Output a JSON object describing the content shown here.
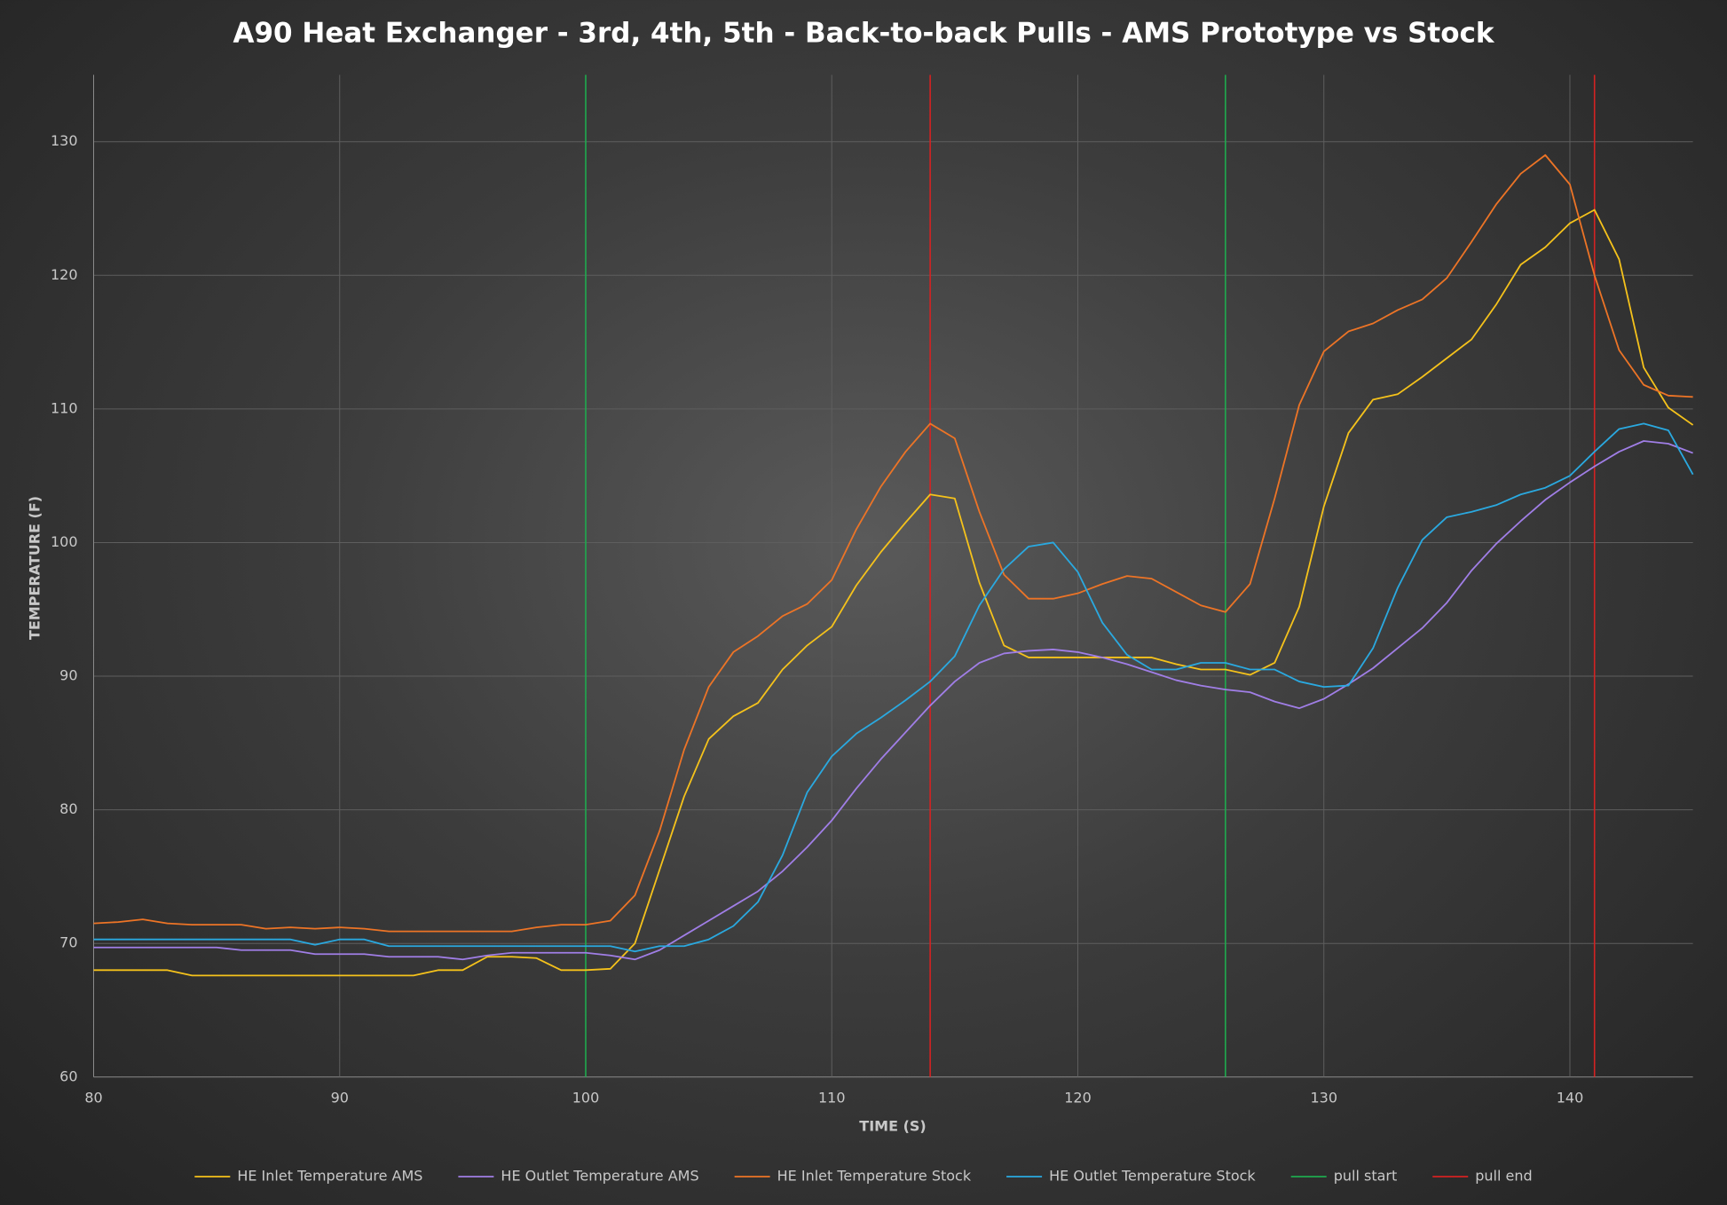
{
  "chart_data": {
    "type": "line",
    "title": "A90 Heat Exchanger - 3rd, 4th, 5th - Back-to-back Pulls - AMS Prototype vs Stock",
    "x_label": "TIME (S)",
    "y_label": "TEMPERATURE (F)",
    "x": [
      80,
      81,
      82,
      83,
      84,
      85,
      86,
      87,
      88,
      89,
      90,
      91,
      92,
      93,
      94,
      95,
      96,
      97,
      98,
      99,
      100,
      101,
      102,
      103,
      104,
      105,
      106,
      107,
      108,
      109,
      110,
      111,
      112,
      113,
      114,
      115,
      116,
      117,
      118,
      119,
      120,
      121,
      122,
      123,
      124,
      125,
      126,
      127,
      128,
      129,
      130,
      131,
      132,
      133,
      134,
      135,
      136,
      137,
      138,
      139,
      140,
      141,
      142,
      143,
      144,
      145
    ],
    "series": [
      {
        "name": "HE Inlet Temperature AMS",
        "color": "#f5c21b",
        "values": [
          68,
          68,
          68,
          68,
          67.6,
          67.6,
          67.6,
          67.6,
          67.6,
          67.6,
          67.6,
          67.6,
          67.6,
          67.6,
          68,
          68,
          69,
          69,
          68.9,
          68,
          68,
          68.1,
          70,
          75.5,
          81,
          85.3,
          87,
          88,
          90.5,
          92.3,
          93.7,
          96.8,
          99.3,
          101.5,
          103.6,
          103.3,
          97,
          92.3,
          91.4,
          91.4,
          91.4,
          91.4,
          91.4,
          91.4,
          90.9,
          90.5,
          90.5,
          90.1,
          91,
          95.2,
          102.7,
          108.2,
          110.7,
          111.1,
          112.4,
          113.8,
          115.2,
          117.8,
          120.8,
          122.1,
          123.9,
          124.9,
          121.2,
          113.1,
          110.1,
          108.8
        ]
      },
      {
        "name": "HE Outlet Temperature AMS",
        "color": "#a07ee6",
        "values": [
          69.7,
          69.7,
          69.7,
          69.7,
          69.7,
          69.7,
          69.5,
          69.5,
          69.5,
          69.2,
          69.2,
          69.2,
          69,
          69,
          69,
          68.8,
          69.1,
          69.3,
          69.3,
          69.3,
          69.3,
          69.1,
          68.8,
          69.5,
          70.6,
          71.7,
          72.8,
          73.9,
          75.4,
          77.2,
          79.2,
          81.6,
          83.8,
          85.8,
          87.8,
          89.6,
          91,
          91.7,
          91.9,
          92,
          91.8,
          91.4,
          90.9,
          90.3,
          89.7,
          89.3,
          89,
          88.8,
          88.1,
          87.6,
          88.3,
          89.4,
          90.6,
          92.1,
          93.6,
          95.5,
          97.9,
          99.9,
          101.6,
          103.2,
          104.5,
          105.7,
          106.8,
          107.6,
          107.4,
          106.7
        ]
      },
      {
        "name": "HE Inlet Temperature Stock",
        "color": "#ed7426",
        "values": [
          71.5,
          71.6,
          71.8,
          71.5,
          71.4,
          71.4,
          71.4,
          71.1,
          71.2,
          71.1,
          71.2,
          71.1,
          70.9,
          70.9,
          70.9,
          70.9,
          70.9,
          70.9,
          71.2,
          71.4,
          71.4,
          71.7,
          73.6,
          78.4,
          84.5,
          89.2,
          91.8,
          93,
          94.5,
          95.4,
          97.2,
          101,
          104.2,
          106.8,
          108.9,
          107.8,
          102.3,
          97.6,
          95.8,
          95.8,
          96.2,
          96.9,
          97.5,
          97.3,
          96.3,
          95.3,
          94.8,
          96.9,
          103.3,
          110.3,
          114.3,
          115.8,
          116.4,
          117.4,
          118.2,
          119.8,
          122.5,
          125.3,
          127.6,
          129,
          126.8,
          120,
          114.4,
          111.8,
          111,
          110.9
        ]
      },
      {
        "name": "HE Outlet Temperature Stock",
        "color": "#2aa9e0",
        "values": [
          70.3,
          70.3,
          70.3,
          70.3,
          70.3,
          70.3,
          70.3,
          70.3,
          70.3,
          69.9,
          70.3,
          70.3,
          69.8,
          69.8,
          69.8,
          69.8,
          69.8,
          69.8,
          69.8,
          69.8,
          69.8,
          69.8,
          69.4,
          69.8,
          69.8,
          70.3,
          71.3,
          73.1,
          76.6,
          81.3,
          84,
          85.7,
          86.9,
          88.2,
          89.6,
          91.5,
          95.3,
          98,
          99.7,
          100,
          97.8,
          94,
          91.6,
          90.5,
          90.5,
          91,
          91,
          90.5,
          90.5,
          89.6,
          89.2,
          89.3,
          92.1,
          96.6,
          100.2,
          101.9,
          102.3,
          102.8,
          103.6,
          104.1,
          105,
          106.8,
          108.5,
          108.9,
          108.4,
          105.1
        ]
      }
    ],
    "markers": [
      {
        "name": "pull start",
        "color": "#1faa4e",
        "x": [
          100,
          126
        ]
      },
      {
        "name": "pull end",
        "color": "#d42222",
        "x": [
          114,
          141
        ]
      }
    ],
    "xlim": [
      80,
      145
    ],
    "xticks": [
      80,
      90,
      100,
      110,
      120,
      130,
      140
    ],
    "ylim": [
      60,
      135
    ],
    "yticks": [
      60,
      70,
      80,
      90,
      100,
      110,
      120,
      130
    ],
    "grid": true,
    "legend": "bottom"
  }
}
